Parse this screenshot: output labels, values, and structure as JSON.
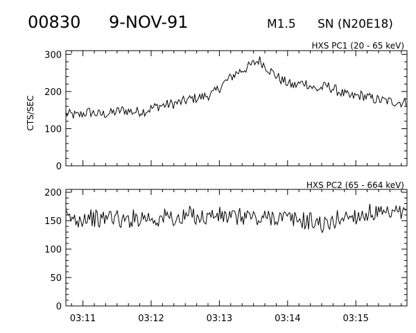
{
  "header": {
    "event_id": "00830",
    "date": "9-NOV-91",
    "flare_class": "M1.5",
    "location": "SN (N20E18)"
  },
  "chart_data": [
    {
      "type": "line",
      "title": "HXS PC1 (20 - 65 keV)",
      "ylabel": "CTS/SEC",
      "xlabel": "",
      "ylim": [
        0,
        310
      ],
      "yticks": [
        0,
        100,
        200,
        300
      ],
      "xlim": [
        "03:10:45",
        "03:15:45"
      ],
      "xticks": [
        "03:11",
        "03:12",
        "03:13",
        "03:14",
        "03:15"
      ],
      "grid": false,
      "series": [
        {
          "x": [
            "03:10:45",
            "03:10:55",
            "03:11:05",
            "03:11:15",
            "03:11:25",
            "03:11:35",
            "03:11:45",
            "03:11:55",
            "03:12:05",
            "03:12:15",
            "03:12:25",
            "03:12:35",
            "03:12:45",
            "03:12:55",
            "03:13:05",
            "03:13:15",
            "03:13:25",
            "03:13:35",
            "03:13:45",
            "03:13:55",
            "03:14:05",
            "03:14:15",
            "03:14:25",
            "03:14:35",
            "03:14:45",
            "03:14:55",
            "03:15:05",
            "03:15:15",
            "03:15:25",
            "03:15:35",
            "03:15:45"
          ],
          "values": [
            140,
            135,
            145,
            138,
            142,
            150,
            145,
            148,
            160,
            165,
            170,
            180,
            185,
            195,
            225,
            250,
            265,
            285,
            255,
            230,
            215,
            225,
            205,
            215,
            200,
            185,
            190,
            180,
            175,
            172,
            170
          ]
        }
      ]
    },
    {
      "type": "line",
      "title": "HXS PC2 (65 - 664 keV)",
      "ylabel": "",
      "xlabel": "",
      "ylim": [
        0,
        205
      ],
      "yticks": [
        0,
        50,
        100,
        150,
        200
      ],
      "xlim": [
        "03:10:45",
        "03:15:45"
      ],
      "xticks": [
        "03:11",
        "03:12",
        "03:13",
        "03:14",
        "03:15"
      ],
      "grid": false,
      "series": [
        {
          "x": [
            "03:10:45",
            "03:10:55",
            "03:11:05",
            "03:11:15",
            "03:11:25",
            "03:11:35",
            "03:11:45",
            "03:11:55",
            "03:12:05",
            "03:12:15",
            "03:12:25",
            "03:12:35",
            "03:12:45",
            "03:12:55",
            "03:13:05",
            "03:13:15",
            "03:13:25",
            "03:13:35",
            "03:13:45",
            "03:13:55",
            "03:14:05",
            "03:14:15",
            "03:14:25",
            "03:14:35",
            "03:14:45",
            "03:14:55",
            "03:15:05",
            "03:15:15",
            "03:15:25",
            "03:15:35",
            "03:15:45"
          ],
          "values": [
            155,
            152,
            158,
            150,
            160,
            148,
            155,
            157,
            152,
            158,
            150,
            162,
            155,
            160,
            157,
            155,
            160,
            150,
            158,
            155,
            152,
            150,
            148,
            140,
            155,
            158,
            160,
            165,
            158,
            162,
            160
          ]
        }
      ]
    }
  ]
}
